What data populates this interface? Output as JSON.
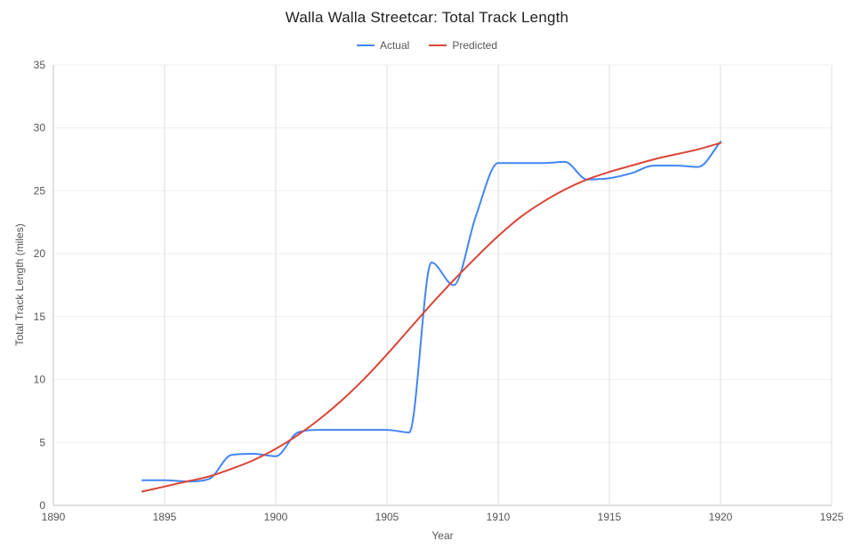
{
  "title": "Walla Walla Streetcar: Total Track Length",
  "axes": {
    "x_label": "Year",
    "y_label": "Total Track Length (miles)"
  },
  "colors": {
    "actual": "#4285f4",
    "predicted": "#db4437",
    "grid_vertical": "#dadce0",
    "grid_horizontal": "#efefef",
    "axis_line": "#c0c0c0",
    "tick_text": "#555555"
  },
  "chart_data": {
    "type": "line",
    "title": "Walla Walla Streetcar: Total Track Length",
    "xlabel": "Year",
    "ylabel": "Total Track Length (miles)",
    "xlim": [
      1890,
      1925
    ],
    "ylim": [
      0,
      35
    ],
    "x_ticks": [
      1890,
      1895,
      1900,
      1905,
      1910,
      1915,
      1920,
      1925
    ],
    "y_ticks": [
      0,
      5,
      10,
      15,
      20,
      25,
      30,
      35
    ],
    "grid": true,
    "legend_position": "top",
    "x": [
      1894,
      1895,
      1896,
      1897,
      1898,
      1899,
      1900,
      1901,
      1902,
      1903,
      1904,
      1905,
      1906,
      1907,
      1908,
      1909,
      1910,
      1911,
      1912,
      1913,
      1914,
      1915,
      1916,
      1917,
      1918,
      1919,
      1920
    ],
    "series": [
      {
        "name": "Actual",
        "color": "#4285f4",
        "values": [
          2.0,
          2.0,
          1.9,
          2.1,
          4.0,
          4.1,
          3.9,
          5.8,
          6.0,
          6.0,
          6.0,
          6.0,
          5.8,
          19.3,
          17.5,
          23.0,
          27.2,
          27.2,
          27.2,
          27.3,
          25.9,
          26.0,
          26.4,
          27.0,
          27.0,
          26.9,
          28.9
        ]
      },
      {
        "name": "Predicted",
        "color": "#db4437",
        "values": [
          1.1,
          1.5,
          1.9,
          2.3,
          2.9,
          3.6,
          4.5,
          5.6,
          6.9,
          8.4,
          10.1,
          12.0,
          14.0,
          16.0,
          17.9,
          19.7,
          21.4,
          22.9,
          24.1,
          25.1,
          25.9,
          26.5,
          27.0,
          27.5,
          27.9,
          28.3,
          28.8
        ]
      }
    ]
  }
}
